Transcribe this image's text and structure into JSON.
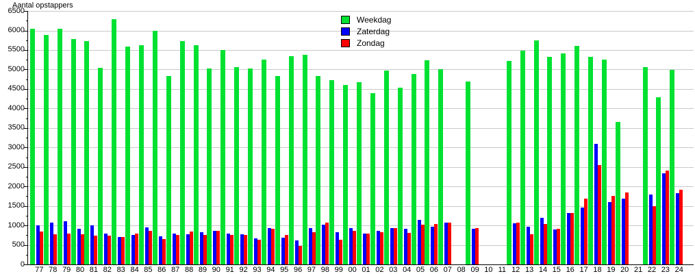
{
  "chart_data": {
    "type": "bar",
    "title": "Aantal opstappers",
    "categories": [
      "77",
      "78",
      "79",
      "80",
      "81",
      "82",
      "83",
      "84",
      "85",
      "86",
      "87",
      "88",
      "89",
      "90",
      "91",
      "92",
      "93",
      "94",
      "95",
      "96",
      "97",
      "98",
      "99",
      "00",
      "01",
      "02",
      "03",
      "04",
      "05",
      "06",
      "07",
      "08",
      "09",
      "10",
      "11",
      "12",
      "13",
      "14",
      "15",
      "16",
      "17",
      "18",
      "19",
      "20",
      "21",
      "22",
      "23",
      "24"
    ],
    "series": [
      {
        "name": "Weekdag",
        "color": "#00e132",
        "values": [
          6050,
          5890,
          6040,
          5780,
          5720,
          5050,
          6290,
          5590,
          5630,
          6000,
          4840,
          5720,
          5630,
          5020,
          5500,
          5060,
          5030,
          5260,
          4830,
          5340,
          5370,
          4840,
          4730,
          4610,
          4670,
          4400,
          4980,
          4540,
          4890,
          5240,
          5010,
          null,
          4700,
          null,
          null,
          5210,
          5490,
          5740,
          5330,
          5410,
          5600,
          5330,
          5260,
          3660,
          null,
          5060,
          4290,
          4990
        ]
      },
      {
        "name": "Zaterdag",
        "color": "#0000ff",
        "values": [
          1010,
          1070,
          1110,
          910,
          1000,
          790,
          710,
          750,
          950,
          720,
          800,
          770,
          830,
          860,
          800,
          780,
          660,
          940,
          690,
          620,
          930,
          1020,
          820,
          930,
          790,
          870,
          930,
          920,
          1140,
          970,
          1070,
          null,
          920,
          null,
          null,
          1050,
          960,
          1200,
          890,
          1320,
          1460,
          3100,
          1600,
          1680,
          null,
          1800,
          2330,
          1830
        ]
      },
      {
        "name": "Zondag",
        "color": "#ff0000",
        "values": [
          840,
          770,
          790,
          770,
          730,
          730,
          700,
          790,
          860,
          650,
          750,
          840,
          750,
          870,
          750,
          750,
          640,
          920,
          750,
          480,
          830,
          1070,
          630,
          860,
          800,
          830,
          930,
          810,
          1020,
          1040,
          1080,
          null,
          930,
          null,
          null,
          1080,
          780,
          1030,
          910,
          1320,
          1680,
          2550,
          1750,
          1840,
          null,
          1500,
          2410,
          1920
        ]
      }
    ],
    "ylim": [
      0,
      6500
    ],
    "ytick_interval": 500,
    "ytick_labels": [
      "0",
      "500",
      "1000",
      "1500",
      "2000",
      "2500",
      "3000",
      "3500",
      "4000",
      "4500",
      "5000",
      "5500",
      "6000",
      "6500"
    ],
    "grid": true,
    "legend_position": "top-center",
    "axis_color": "#000000",
    "grid_color": "#c8c8c8",
    "background_color": "#ffffff"
  }
}
